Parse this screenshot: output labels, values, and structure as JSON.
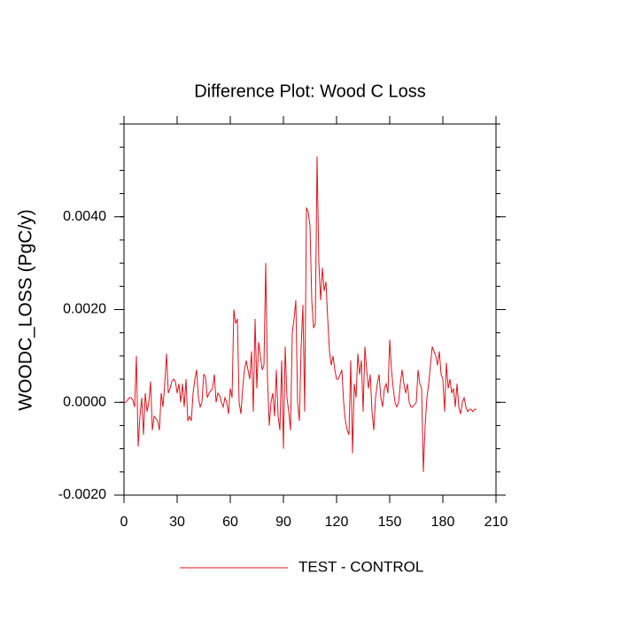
{
  "chart_data": {
    "type": "line",
    "title": "Difference Plot: Wood C Loss",
    "y_label": "WOODC_LOSS  (PgC/y)",
    "x": [
      0,
      1,
      2,
      3,
      4,
      5,
      6,
      7,
      8,
      9,
      10,
      11,
      12,
      13,
      14,
      15,
      16,
      17,
      18,
      19,
      20,
      21,
      22,
      23,
      24,
      25,
      26,
      27,
      28,
      29,
      30,
      31,
      32,
      33,
      34,
      35,
      36,
      37,
      38,
      39,
      40,
      41,
      42,
      43,
      44,
      45,
      46,
      47,
      48,
      49,
      50,
      51,
      52,
      53,
      54,
      55,
      56,
      57,
      58,
      59,
      60,
      61,
      62,
      63,
      64,
      65,
      66,
      67,
      68,
      69,
      70,
      71,
      72,
      73,
      74,
      75,
      76,
      77,
      78,
      79,
      80,
      81,
      82,
      83,
      84,
      85,
      86,
      87,
      88,
      89,
      90,
      91,
      92,
      93,
      94,
      95,
      96,
      97,
      98,
      99,
      100,
      101,
      102,
      103,
      104,
      105,
      106,
      107,
      108,
      109,
      110,
      111,
      112,
      113,
      114,
      115,
      116,
      117,
      118,
      119,
      120,
      121,
      122,
      123,
      124,
      125,
      126,
      127,
      128,
      129,
      130,
      131,
      132,
      133,
      134,
      135,
      136,
      137,
      138,
      139,
      140,
      141,
      142,
      143,
      144,
      145,
      146,
      147,
      148,
      149,
      150,
      151,
      152,
      153,
      154,
      155,
      156,
      157,
      158,
      159,
      160,
      161,
      162,
      163,
      164,
      165,
      166,
      167,
      168,
      169,
      170,
      171,
      172,
      173,
      174,
      175,
      176,
      177,
      178,
      179,
      180,
      181,
      182,
      183,
      184,
      185,
      186,
      187,
      188,
      189,
      190,
      191,
      192,
      193,
      194,
      195,
      196,
      197,
      198,
      199
    ],
    "series": [
      {
        "name": "TEST - CONTROL",
        "color": "#e0141e",
        "values": [
          0,
          0,
          5e-05,
          0.0001,
          0.0001,
          5e-05,
          -0.0001,
          0.001,
          -0.00095,
          -0.0003,
          0.0001,
          -0.0007,
          0.0002,
          -0.0002,
          0,
          0.00045,
          -0.0006,
          -0.0003,
          -0.00035,
          -0.0004,
          -0.0006,
          0.0002,
          -0.0001,
          0.0004,
          0.00105,
          0.0002,
          0.0003,
          0.00045,
          0.0005,
          0.00045,
          0.0002,
          0.0004,
          0,
          0.0004,
          -0.0001,
          0.0005,
          -0.0004,
          -0.0003,
          -0.0004,
          0.0002,
          0.0005,
          0.0007,
          0.0001,
          -0.0001,
          0,
          0.0006,
          0.00055,
          0.0001,
          0.0002,
          0.00025,
          0.0003,
          0.0006,
          0,
          0.0002,
          0.00015,
          0,
          -0.0001,
          0.0001,
          0,
          -0.00025,
          0.0003,
          0.0001,
          0.002,
          0.0017,
          0.0018,
          0,
          -0.00025,
          0.0003,
          0.0007,
          0.0009,
          0.0007,
          0.0005,
          0.0011,
          -0.0002,
          0.0018,
          0.0003,
          0.0013,
          0.001,
          0.0007,
          0.0008,
          0.003,
          0.0005,
          -0.0005,
          0,
          0.0002,
          -0.0003,
          0.0007,
          -0.0003,
          -0.0006,
          0.0009,
          -0.001,
          0.0012,
          0.0001,
          -0.0002,
          -0.0006,
          0.0015,
          0.0018,
          0.0022,
          0,
          -0.0004,
          0.0012,
          0.0021,
          -0.0002,
          0.0042,
          0.0041,
          0.0038,
          0.0022,
          0.0016,
          0.0017,
          0.0053,
          0.003,
          0.0022,
          0.0029,
          0.0024,
          0.0026,
          0.0018,
          0.0011,
          0.0008,
          0.001,
          0.0007,
          0.0005,
          0.0005,
          0.0006,
          0.0007,
          0,
          -0.0004,
          -0.0006,
          -0.0007,
          0.0009,
          -0.0011,
          0.0004,
          0.0001,
          0.00105,
          0.0006,
          0.0009,
          -0.0002,
          0.0012,
          0.0007,
          0.0003,
          0.0006,
          -0.0002,
          -0.0006,
          0.0001,
          0.0004,
          0.0006,
          0.0001,
          -0.0001,
          0.0003,
          0.0004,
          0.0002,
          0.00135,
          0.0007,
          0.0003,
          0,
          -0.0001,
          0,
          0.0004,
          0.0007,
          0.0004,
          0.0002,
          0.0004,
          0,
          -0.0001,
          -0.0001,
          -5e-05,
          0,
          0.0007,
          0.0004,
          0.0003,
          -0.0015,
          -0.0005,
          0.0001,
          0.0004,
          0.0008,
          0.0012,
          0.0011,
          0.001,
          0.0008,
          0.0011,
          0.0006,
          0.0005,
          -0.0002,
          0.00085,
          0.0003,
          0.0005,
          0.0002,
          0.0003,
          -0.0001,
          0.0004,
          -0.0001,
          -0.00025,
          0,
          0.0001,
          -0.0001,
          -0.0002,
          -0.00015,
          -0.00015,
          -0.0002,
          -0.00015,
          -0.00015
        ]
      }
    ],
    "xlim": [
      0,
      210
    ],
    "xticks": [
      0,
      30,
      60,
      90,
      120,
      150,
      180,
      210
    ],
    "ylim": [
      -0.002,
      0.006
    ],
    "yticks": [
      {
        "value": -0.002,
        "label": "-0.0020"
      },
      {
        "value": 0,
        "label": "0.0000"
      },
      {
        "value": 0.002,
        "label": "0.0020"
      },
      {
        "value": 0.004,
        "label": "0.0040"
      }
    ],
    "legend": "bottom"
  }
}
